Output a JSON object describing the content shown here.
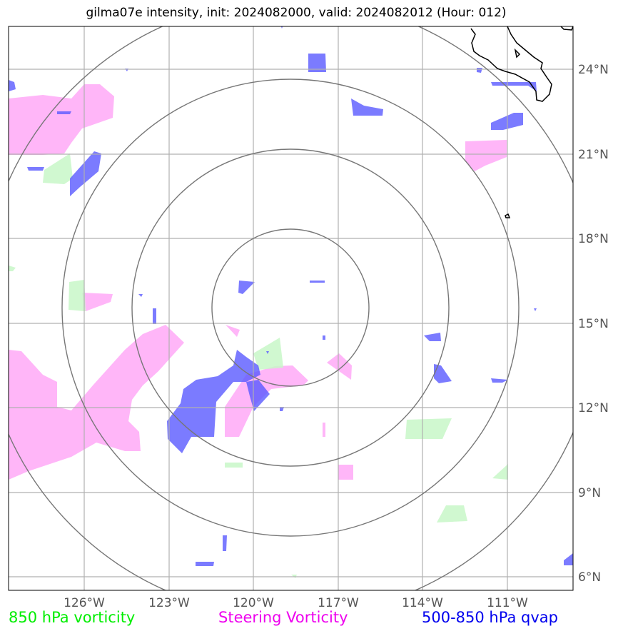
{
  "title": "gilma07e intensity, init: 2024082000, valid: 2024082012 (Hour: 012)",
  "map": {
    "lon_range": [
      -128.7,
      -108.7
    ],
    "lat_range": [
      5.5,
      25.5
    ],
    "lon_ticks": [
      {
        "value": -126,
        "label": "126°W"
      },
      {
        "value": -123,
        "label": "123°W"
      },
      {
        "value": -120,
        "label": "120°W"
      },
      {
        "value": -117,
        "label": "117°W"
      },
      {
        "value": -114,
        "label": "114°W"
      },
      {
        "value": -111,
        "label": "111°W"
      }
    ],
    "lat_ticks": [
      {
        "value": 6,
        "label": "6°N"
      },
      {
        "value": 9,
        "label": "9°N"
      },
      {
        "value": 12,
        "label": "12°N"
      },
      {
        "value": 15,
        "label": "15°N"
      },
      {
        "value": 18,
        "label": "18°N"
      },
      {
        "value": 21,
        "label": "21°N"
      },
      {
        "value": 24,
        "label": "24°N"
      }
    ],
    "storm_center": {
      "lon": -118.7,
      "lat": 15.55
    },
    "range_rings_deg": [
      2.75,
      5.4,
      8.05,
      10.7
    ],
    "colors": {
      "vort850": "#c8f7c8",
      "steering": "#ff9ef5",
      "qvap": "#5a5aff",
      "grid": "#b0b0b0",
      "rings": "#777777",
      "coast": "#000000"
    }
  },
  "legend": {
    "vort850": {
      "label": "850 hPa vorticity",
      "color": "#00ee00"
    },
    "steering": {
      "label": "Steering Vorticity",
      "color": "#ee00ee"
    },
    "qvap": {
      "label": "500-850 hPa qvap",
      "color": "#0000ee"
    }
  }
}
